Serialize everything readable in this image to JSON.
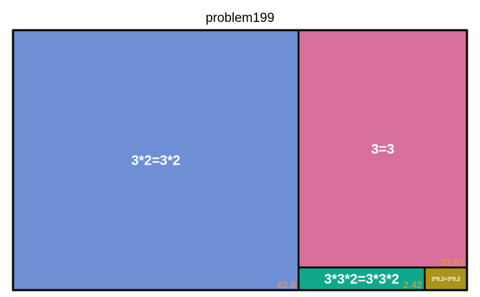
{
  "chart_data": {
    "type": "treemap",
    "title": "problem199",
    "items": [
      {
        "label": "3*2=3*2",
        "value": 62.9,
        "value_label": "62.9",
        "color": "#6e8fd6"
      },
      {
        "label": "3=3",
        "value": 33.87,
        "value_label": "33.87",
        "color": "#d6709b"
      },
      {
        "label": "3*3*2=3*3*2",
        "value": 2.42,
        "value_label": "2.42",
        "color": "#10a88a"
      },
      {
        "label": "3*0.2=3*0.2",
        "value": 0.81,
        "value_label": "",
        "color": "#ab9419"
      }
    ],
    "value_label_color": "#f59b3a",
    "border_color": "#000000"
  }
}
